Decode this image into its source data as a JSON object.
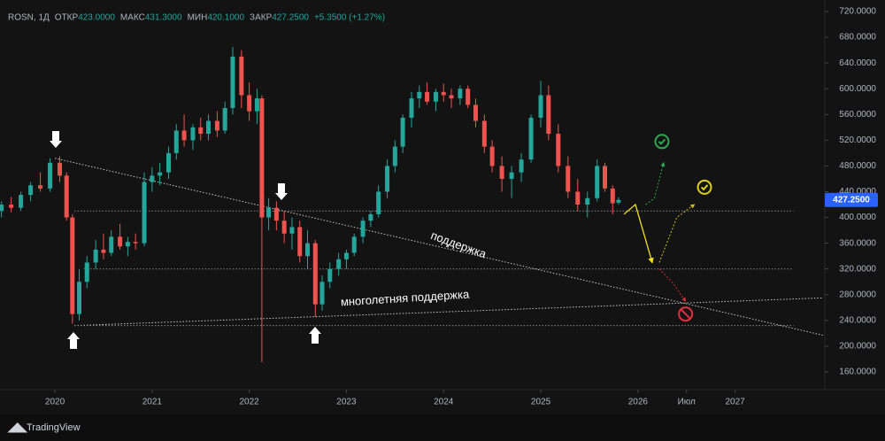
{
  "chart_data": {
    "type": "candlestick",
    "header": {
      "symbol": "ROSN, 1Д",
      "open_label": "ОТКР",
      "open": "423.0000",
      "high_label": "МАКС",
      "high": "431.3000",
      "low_label": "МИН",
      "low": "420.1000",
      "close_label": "ЗАКР",
      "close": "427.2500",
      "change": "+5.3500 (+1.27%)"
    },
    "x": [
      2019.45,
      2019.55,
      2019.65,
      2019.75,
      2019.85,
      2019.95,
      2020.05,
      2020.12,
      2020.18,
      2020.25,
      2020.33,
      2020.42,
      2020.5,
      2020.58,
      2020.67,
      2020.75,
      2020.83,
      2020.92,
      2021.0,
      2021.08,
      2021.17,
      2021.25,
      2021.33,
      2021.42,
      2021.5,
      2021.58,
      2021.67,
      2021.75,
      2021.83,
      2021.92,
      2022.0,
      2022.08,
      2022.13,
      2022.2,
      2022.28,
      2022.36,
      2022.44,
      2022.52,
      2022.6,
      2022.68,
      2022.75,
      2022.83,
      2022.92,
      2023.0,
      2023.08,
      2023.17,
      2023.25,
      2023.33,
      2023.42,
      2023.5,
      2023.58,
      2023.67,
      2023.75,
      2023.83,
      2023.92,
      2024.0,
      2024.08,
      2024.17,
      2024.25,
      2024.33,
      2024.42,
      2024.5,
      2024.6,
      2024.7,
      2024.8,
      2024.9,
      2025.0,
      2025.08,
      2025.18,
      2025.28,
      2025.38,
      2025.48,
      2025.58,
      2025.66,
      2025.74,
      2025.8
    ],
    "open": [
      410,
      420,
      415,
      435,
      450,
      445,
      485,
      465,
      400,
      250,
      300,
      330,
      350,
      345,
      370,
      355,
      362,
      360,
      455,
      465,
      470,
      500,
      535,
      520,
      540,
      530,
      550,
      535,
      570,
      650,
      590,
      565,
      585,
      400,
      415,
      395,
      375,
      385,
      340,
      360,
      265,
      300,
      320,
      335,
      345,
      370,
      395,
      405,
      440,
      480,
      510,
      555,
      585,
      595,
      580,
      595,
      590,
      585,
      600,
      575,
      550,
      510,
      480,
      460,
      470,
      490,
      555,
      590,
      530,
      480,
      440,
      420,
      430,
      480,
      445,
      423
    ],
    "high": [
      425,
      432,
      440,
      455,
      470,
      492,
      495,
      470,
      405,
      320,
      340,
      365,
      375,
      380,
      390,
      370,
      375,
      470,
      478,
      485,
      510,
      545,
      560,
      545,
      555,
      560,
      565,
      580,
      665,
      660,
      610,
      600,
      590,
      430,
      425,
      410,
      400,
      395,
      380,
      365,
      310,
      330,
      345,
      350,
      375,
      400,
      410,
      450,
      490,
      520,
      560,
      595,
      605,
      610,
      600,
      608,
      600,
      605,
      605,
      585,
      560,
      520,
      495,
      480,
      500,
      560,
      612,
      605,
      545,
      495,
      460,
      440,
      490,
      485,
      450,
      431.3
    ],
    "low": [
      400,
      408,
      410,
      425,
      440,
      440,
      455,
      395,
      235,
      240,
      290,
      320,
      335,
      340,
      350,
      340,
      350,
      355,
      440,
      450,
      460,
      490,
      510,
      505,
      520,
      520,
      525,
      530,
      560,
      570,
      550,
      545,
      175,
      380,
      380,
      360,
      350,
      330,
      320,
      245,
      255,
      290,
      310,
      320,
      340,
      360,
      385,
      400,
      430,
      470,
      500,
      540,
      570,
      575,
      565,
      580,
      570,
      575,
      570,
      540,
      500,
      470,
      440,
      430,
      455,
      485,
      540,
      520,
      470,
      430,
      410,
      400,
      425,
      440,
      405,
      420.1
    ],
    "close": [
      420,
      415,
      435,
      450,
      445,
      485,
      465,
      400,
      250,
      300,
      330,
      350,
      345,
      370,
      355,
      362,
      360,
      455,
      465,
      470,
      500,
      535,
      520,
      540,
      530,
      550,
      535,
      570,
      650,
      590,
      565,
      585,
      400,
      415,
      395,
      375,
      385,
      340,
      360,
      265,
      300,
      320,
      335,
      345,
      370,
      395,
      405,
      440,
      480,
      510,
      555,
      585,
      595,
      580,
      595,
      590,
      585,
      600,
      575,
      550,
      510,
      480,
      460,
      470,
      490,
      555,
      590,
      530,
      480,
      440,
      420,
      430,
      480,
      445,
      422,
      427.25
    ],
    "up_color": "#26a69a",
    "down_color": "#ef5350",
    "xlim": [
      2019.435,
      2027.905
    ],
    "xticks": [
      2020,
      2021,
      2022,
      2023,
      2024,
      2025,
      2026,
      {
        "value": 2026.5,
        "label": "Июл"
      },
      2027
    ],
    "ylim": [
      160,
      720
    ],
    "yticks": [
      {
        "value": 720,
        "label": "720.0000"
      },
      {
        "value": 680,
        "label": "680.0000"
      },
      {
        "value": 640,
        "label": "640.0000"
      },
      {
        "value": 600,
        "label": "600.0000"
      },
      {
        "value": 560,
        "label": "560.0000"
      },
      {
        "value": 520,
        "label": "520.0000"
      },
      {
        "value": 480,
        "label": "480.0000"
      },
      {
        "value": 440,
        "label": "440.0000"
      },
      {
        "value": 400,
        "label": "400.0000"
      },
      {
        "value": 360,
        "label": "360.0000"
      },
      {
        "value": 320,
        "label": "320.0000"
      },
      {
        "value": 280,
        "label": "280.0000"
      },
      {
        "value": 240,
        "label": "240.0000"
      },
      {
        "value": 200,
        "label": "200.0000"
      },
      {
        "value": 160,
        "label": "160.0000"
      }
    ],
    "last_price": {
      "value": 427.25,
      "label": "427.2500"
    },
    "annotations": {
      "trend": "поддержка",
      "long_trend": "многолетняя поддержка"
    },
    "drawings": [
      {
        "kind": "line",
        "color": "#c8c8c8",
        "points": [
          [
            2020.0,
            492
          ],
          [
            2027.905,
            217
          ]
        ]
      },
      {
        "kind": "line",
        "color": "#c8c8c8",
        "points": [
          [
            2020.2,
            232
          ],
          [
            2027.905,
            275
          ]
        ]
      },
      {
        "kind": "line",
        "color": "#8a8a8a",
        "points": [
          [
            2020.2,
            410
          ],
          [
            2027.6,
            410
          ]
        ]
      },
      {
        "kind": "line",
        "color": "#8a8a8a",
        "points": [
          [
            2020.3,
            320
          ],
          [
            2027.6,
            320
          ]
        ]
      },
      {
        "kind": "line",
        "color": "#8a8a8a",
        "points": [
          [
            2020.2,
            232
          ],
          [
            2027.6,
            232
          ]
        ]
      },
      {
        "kind": "arrow",
        "color": "#f0e020",
        "points": [
          [
            2025.856,
            405
          ],
          [
            2025.974,
            420
          ],
          [
            2026.147,
            330
          ]
        ]
      },
      {
        "kind": "dotted-arrow",
        "color": "#2fa84f",
        "points": [
          [
            2026.08,
            420
          ],
          [
            2026.17,
            430
          ],
          [
            2026.265,
            485
          ]
        ]
      },
      {
        "kind": "dotted-arrow",
        "color": "#c9c020",
        "points": [
          [
            2026.22,
            330
          ],
          [
            2026.4,
            400
          ],
          [
            2026.58,
            420
          ]
        ]
      },
      {
        "kind": "dotted-arrow",
        "color": "#d03030",
        "points": [
          [
            2026.22,
            320
          ],
          [
            2026.35,
            300
          ],
          [
            2026.49,
            270
          ]
        ]
      }
    ],
    "icons": [
      {
        "kind": "check",
        "color": "#2fa84f",
        "point": [
          2026.247,
          518
        ]
      },
      {
        "kind": "check",
        "color": "#e0d020",
        "point": [
          2026.685,
          447
        ]
      },
      {
        "kind": "no",
        "color": "#e03040",
        "point": [
          2026.49,
          250
        ]
      }
    ],
    "footer": "TradingView"
  }
}
